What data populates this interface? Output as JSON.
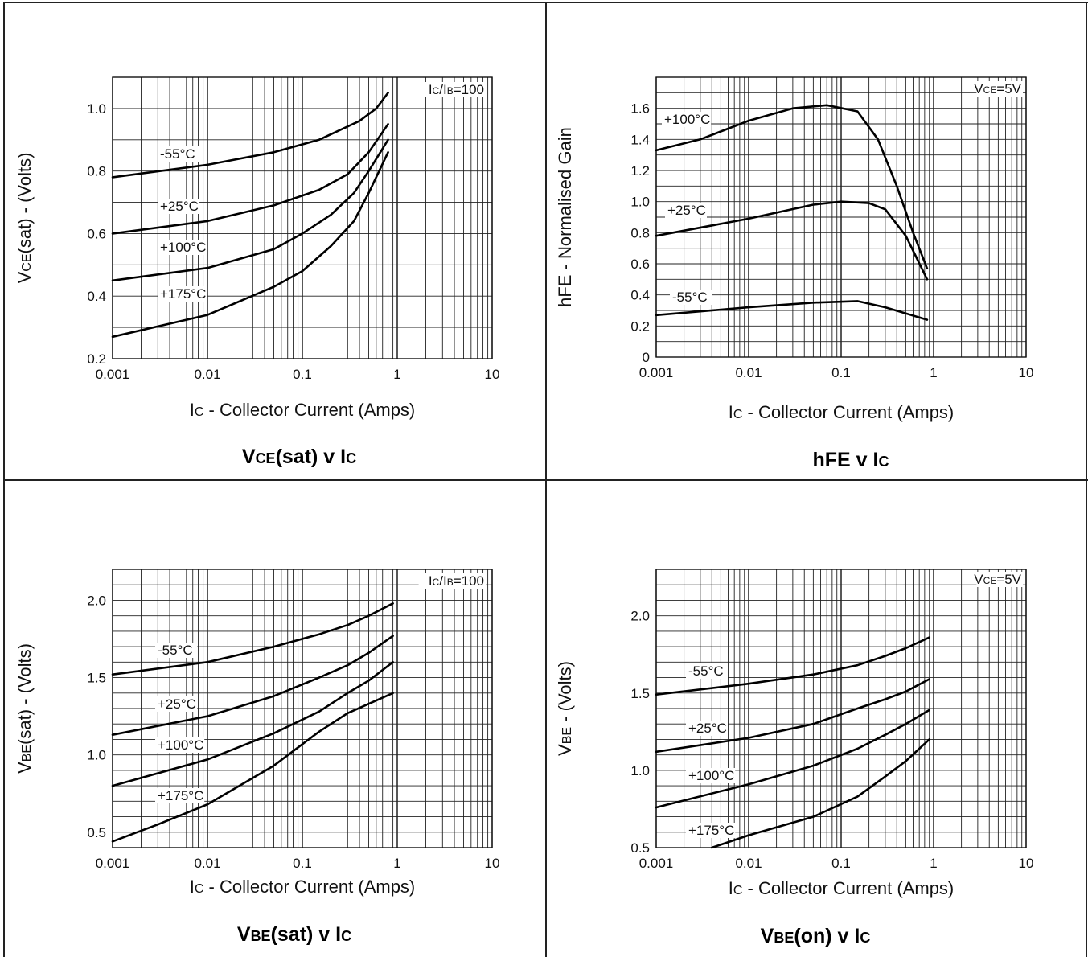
{
  "chart_data": [
    {
      "type": "line",
      "title": "VCE(sat) v IC",
      "xlabel": "IC - Collector Current (Amps)",
      "ylabel": "VCE(sat) - (Volts)",
      "xscale": "log",
      "xlim": [
        0.001,
        10
      ],
      "ylim": [
        0.2,
        1.1
      ],
      "xticks": [
        "0.001",
        "0.01",
        "0.1",
        "1",
        "10"
      ],
      "yticks": [
        0.2,
        0.4,
        0.6,
        0.8,
        1.0
      ],
      "yticklabels": [
        "0.2",
        "0.4",
        "0.6",
        "0.8",
        "1.0"
      ],
      "condition": "IC/IB=100",
      "grid": true,
      "series": [
        {
          "name": "-55°C",
          "x": [
            0.001,
            0.01,
            0.05,
            0.15,
            0.4,
            0.6,
            0.8
          ],
          "y": [
            0.78,
            0.82,
            0.86,
            0.9,
            0.96,
            1.0,
            1.05
          ]
        },
        {
          "name": "+25°C",
          "x": [
            0.001,
            0.01,
            0.05,
            0.15,
            0.3,
            0.5,
            0.8
          ],
          "y": [
            0.6,
            0.64,
            0.69,
            0.74,
            0.79,
            0.86,
            0.95
          ]
        },
        {
          "name": "+100°C",
          "x": [
            0.001,
            0.01,
            0.05,
            0.1,
            0.2,
            0.35,
            0.5,
            0.8
          ],
          "y": [
            0.45,
            0.49,
            0.55,
            0.6,
            0.66,
            0.73,
            0.8,
            0.9
          ]
        },
        {
          "name": "+175°C",
          "x": [
            0.001,
            0.01,
            0.05,
            0.1,
            0.2,
            0.35,
            0.5,
            0.8
          ],
          "y": [
            0.27,
            0.34,
            0.43,
            0.48,
            0.56,
            0.64,
            0.73,
            0.86
          ]
        }
      ]
    },
    {
      "type": "line",
      "title": "hFE v IC",
      "xlabel": "IC - Collector Current (Amps)",
      "ylabel": "hFE - Normalised Gain",
      "xscale": "log",
      "xlim": [
        0.001,
        10
      ],
      "ylim": [
        0,
        1.8
      ],
      "xticks": [
        "0.001",
        "0.01",
        "0.1",
        "1",
        "10"
      ],
      "yticks": [
        0,
        0.2,
        0.4,
        0.6,
        0.8,
        1.0,
        1.2,
        1.4,
        1.6
      ],
      "yticklabels": [
        "0",
        "0.2",
        "0.4",
        "0.6",
        "0.8",
        "1.0",
        "1.2",
        "1.4",
        "1.6"
      ],
      "condition": "VCE=5V",
      "grid": true,
      "series": [
        {
          "name": "+100°C",
          "x": [
            0.001,
            0.003,
            0.01,
            0.03,
            0.07,
            0.15,
            0.25,
            0.4,
            0.6,
            0.85
          ],
          "y": [
            1.33,
            1.4,
            1.52,
            1.6,
            1.62,
            1.58,
            1.4,
            1.1,
            0.8,
            0.57
          ]
        },
        {
          "name": "+25°C",
          "x": [
            0.001,
            0.01,
            0.05,
            0.1,
            0.2,
            0.3,
            0.5,
            0.85
          ],
          "y": [
            0.78,
            0.89,
            0.98,
            1.0,
            0.99,
            0.95,
            0.78,
            0.5
          ]
        },
        {
          "name": "-55°C",
          "x": [
            0.001,
            0.01,
            0.05,
            0.15,
            0.3,
            0.85
          ],
          "y": [
            0.27,
            0.32,
            0.35,
            0.36,
            0.32,
            0.24
          ]
        }
      ]
    },
    {
      "type": "line",
      "title": "VBE(sat) v IC",
      "xlabel": "IC - Collector Current (Amps)",
      "ylabel": "VBE(sat) - (Volts)",
      "xscale": "log",
      "xlim": [
        0.001,
        10
      ],
      "ylim": [
        0.4,
        2.2
      ],
      "xticks": [
        "0.001",
        "0.01",
        "0.1",
        "1",
        "10"
      ],
      "yticks": [
        0.5,
        1.0,
        1.5,
        2.0
      ],
      "yticklabels": [
        "0.5",
        "1.0",
        "1.5",
        "2.0"
      ],
      "condition": "IC/IB=100",
      "grid": true,
      "series": [
        {
          "name": "-55°C",
          "x": [
            0.001,
            0.01,
            0.05,
            0.15,
            0.3,
            0.5,
            0.9
          ],
          "y": [
            1.52,
            1.6,
            1.7,
            1.78,
            1.84,
            1.9,
            1.98
          ]
        },
        {
          "name": "+25°C",
          "x": [
            0.001,
            0.01,
            0.05,
            0.15,
            0.3,
            0.5,
            0.9
          ],
          "y": [
            1.13,
            1.25,
            1.38,
            1.5,
            1.58,
            1.66,
            1.77
          ]
        },
        {
          "name": "+100°C",
          "x": [
            0.001,
            0.01,
            0.05,
            0.15,
            0.3,
            0.5,
            0.9
          ],
          "y": [
            0.8,
            0.97,
            1.14,
            1.28,
            1.4,
            1.48,
            1.6
          ]
        },
        {
          "name": "+175°C",
          "x": [
            0.001,
            0.003,
            0.01,
            0.05,
            0.15,
            0.3,
            0.5,
            0.9
          ],
          "y": [
            0.44,
            0.55,
            0.68,
            0.93,
            1.15,
            1.27,
            1.33,
            1.4
          ]
        }
      ]
    },
    {
      "type": "line",
      "title": "VBE(on) v IC",
      "xlabel": "IC - Collector Current (Amps)",
      "ylabel": "VBE - (Volts)",
      "xscale": "log",
      "xlim": [
        0.001,
        10
      ],
      "ylim": [
        0.5,
        2.3
      ],
      "xticks": [
        "0.001",
        "0.01",
        "0.1",
        "1",
        "10"
      ],
      "yticks": [
        0.5,
        1.0,
        1.5,
        2.0
      ],
      "yticklabels": [
        "0.5",
        "1.0",
        "1.5",
        "2.0"
      ],
      "condition": "VCE=5V",
      "grid": true,
      "series": [
        {
          "name": "-55°C",
          "x": [
            0.001,
            0.01,
            0.05,
            0.15,
            0.3,
            0.5,
            0.9
          ],
          "y": [
            1.49,
            1.56,
            1.62,
            1.68,
            1.74,
            1.79,
            1.86
          ]
        },
        {
          "name": "+25°C",
          "x": [
            0.001,
            0.01,
            0.05,
            0.15,
            0.3,
            0.5,
            0.9
          ],
          "y": [
            1.12,
            1.21,
            1.3,
            1.4,
            1.46,
            1.51,
            1.59
          ]
        },
        {
          "name": "+100°C",
          "x": [
            0.001,
            0.01,
            0.05,
            0.15,
            0.3,
            0.5,
            0.9
          ],
          "y": [
            0.76,
            0.91,
            1.03,
            1.14,
            1.23,
            1.3,
            1.39
          ]
        },
        {
          "name": "+175°C",
          "x": [
            0.004,
            0.01,
            0.05,
            0.15,
            0.3,
            0.5,
            0.9
          ],
          "y": [
            0.5,
            0.58,
            0.7,
            0.83,
            0.96,
            1.06,
            1.2
          ]
        }
      ]
    }
  ]
}
